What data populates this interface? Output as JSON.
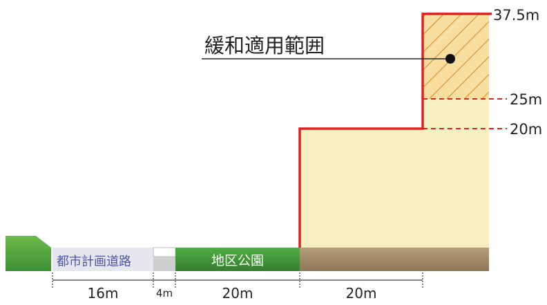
{
  "diagram": {
    "callout_label": "緩和適用範囲",
    "height_labels": {
      "h375": "37.5m",
      "h25": "25m",
      "h20": "20m"
    },
    "ground_labels": {
      "road": "都市計画道路",
      "park": "地区公園"
    },
    "dimension_labels": {
      "d16": "16m",
      "d4": "4m",
      "d20a": "20m",
      "d20b": "20m"
    },
    "colors": {
      "envelope_red": "#e02020",
      "building_fill": "#f7efbf",
      "hatch_fill": "#f8dfa0",
      "hatch_stroke": "#d9953a",
      "park_green": "#3f9e3a",
      "ground_brown": "#a58d6a",
      "road_gray": "#e6e6ee"
    }
  }
}
